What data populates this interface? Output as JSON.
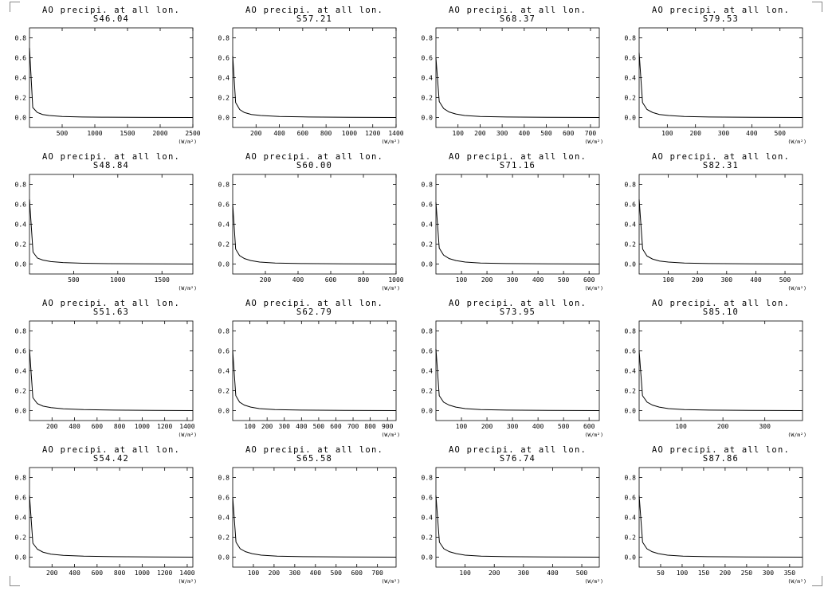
{
  "page": {
    "panel_title": "AO precipi. at all lon.",
    "unit_label": "(W/m²)"
  },
  "chart_data": [
    {
      "type": "line",
      "title": "AO precipi. at all lon.",
      "subtitle": "S46.04",
      "ylim": [
        -0.1,
        0.9
      ],
      "yticks": [
        0.0,
        0.2,
        0.4,
        0.6,
        0.8
      ],
      "xlim": [
        0,
        2500
      ],
      "xticks": [
        500,
        1000,
        1500,
        2000,
        2500
      ],
      "xlabel": "(W/m²)",
      "series": [
        {
          "x": [
            0,
            50,
            120,
            200,
            300,
            500,
            800,
            1200,
            1800,
            2500
          ],
          "y": [
            0.7,
            0.1,
            0.05,
            0.03,
            0.02,
            0.01,
            0.005,
            0.003,
            0.001,
            0.0
          ]
        }
      ]
    },
    {
      "type": "line",
      "title": "AO precipi. at all lon.",
      "subtitle": "S57.21",
      "ylim": [
        -0.1,
        0.9
      ],
      "yticks": [
        0.0,
        0.2,
        0.4,
        0.6,
        0.8
      ],
      "xlim": [
        0,
        1400
      ],
      "xticks": [
        200,
        400,
        600,
        800,
        1000,
        1200,
        1400
      ],
      "xlabel": "(W/m²)",
      "series": [
        {
          "x": [
            0,
            25,
            60,
            100,
            160,
            240,
            400,
            650,
            1000,
            1400
          ],
          "y": [
            0.62,
            0.15,
            0.08,
            0.05,
            0.03,
            0.02,
            0.01,
            0.005,
            0.002,
            0.0
          ]
        }
      ]
    },
    {
      "type": "line",
      "title": "AO precipi. at all lon.",
      "subtitle": "S68.37",
      "ylim": [
        -0.1,
        0.9
      ],
      "yticks": [
        0.0,
        0.2,
        0.4,
        0.6,
        0.8
      ],
      "xlim": [
        0,
        740
      ],
      "xticks": [
        100,
        200,
        300,
        400,
        500,
        600,
        700
      ],
      "xlabel": "(W/m²)",
      "series": [
        {
          "x": [
            0,
            15,
            35,
            60,
            90,
            130,
            200,
            320,
            500,
            740
          ],
          "y": [
            0.6,
            0.16,
            0.09,
            0.055,
            0.035,
            0.02,
            0.01,
            0.005,
            0.002,
            0.0
          ]
        }
      ]
    },
    {
      "type": "line",
      "title": "AO precipi. at all lon.",
      "subtitle": "S79.53",
      "ylim": [
        -0.1,
        0.9
      ],
      "yticks": [
        0.0,
        0.2,
        0.4,
        0.6,
        0.8
      ],
      "xlim": [
        0,
        580
      ],
      "xticks": [
        100,
        200,
        300,
        400,
        500
      ],
      "xlabel": "(W/m²)",
      "series": [
        {
          "x": [
            0,
            12,
            28,
            48,
            72,
            105,
            160,
            250,
            400,
            580
          ],
          "y": [
            0.65,
            0.15,
            0.08,
            0.05,
            0.03,
            0.02,
            0.01,
            0.005,
            0.002,
            0.0
          ]
        }
      ]
    },
    {
      "type": "line",
      "title": "AO precipi. at all lon.",
      "subtitle": "S48.84",
      "ylim": [
        -0.1,
        0.9
      ],
      "yticks": [
        0.0,
        0.2,
        0.4,
        0.6,
        0.8
      ],
      "xlim": [
        0,
        1850
      ],
      "xticks": [
        500,
        1000,
        1500
      ],
      "xlabel": "(W/m²)",
      "series": [
        {
          "x": [
            0,
            40,
            90,
            150,
            240,
            380,
            600,
            900,
            1300,
            1850
          ],
          "y": [
            0.65,
            0.12,
            0.06,
            0.04,
            0.025,
            0.015,
            0.008,
            0.004,
            0.002,
            0.0
          ]
        }
      ]
    },
    {
      "type": "line",
      "title": "AO precipi. at all lon.",
      "subtitle": "S60.00",
      "ylim": [
        -0.1,
        0.9
      ],
      "yticks": [
        0.0,
        0.2,
        0.4,
        0.6,
        0.8
      ],
      "xlim": [
        0,
        1000
      ],
      "xticks": [
        200,
        400,
        600,
        800,
        1000
      ],
      "xlabel": "(W/m²)",
      "series": [
        {
          "x": [
            0,
            18,
            42,
            72,
            110,
            165,
            260,
            420,
            680,
            1000
          ],
          "y": [
            0.6,
            0.15,
            0.085,
            0.055,
            0.035,
            0.02,
            0.01,
            0.005,
            0.002,
            0.0
          ]
        }
      ]
    },
    {
      "type": "line",
      "title": "AO precipi. at all lon.",
      "subtitle": "S71.16",
      "ylim": [
        -0.1,
        0.9
      ],
      "yticks": [
        0.0,
        0.2,
        0.4,
        0.6,
        0.8
      ],
      "xlim": [
        0,
        640
      ],
      "xticks": [
        100,
        200,
        300,
        400,
        500,
        600
      ],
      "xlabel": "(W/m²)",
      "series": [
        {
          "x": [
            0,
            13,
            30,
            52,
            78,
            115,
            175,
            280,
            440,
            640
          ],
          "y": [
            0.62,
            0.16,
            0.09,
            0.055,
            0.035,
            0.02,
            0.01,
            0.005,
            0.002,
            0.0
          ]
        }
      ]
    },
    {
      "type": "line",
      "title": "AO precipi. at all lon.",
      "subtitle": "S82.31",
      "ylim": [
        -0.1,
        0.9
      ],
      "yticks": [
        0.0,
        0.2,
        0.4,
        0.6,
        0.8
      ],
      "xlim": [
        0,
        560
      ],
      "xticks": [
        100,
        200,
        300,
        400,
        500
      ],
      "xlabel": "(W/m²)",
      "series": [
        {
          "x": [
            0,
            12,
            27,
            46,
            70,
            100,
            155,
            245,
            380,
            560
          ],
          "y": [
            0.65,
            0.15,
            0.08,
            0.05,
            0.03,
            0.02,
            0.01,
            0.005,
            0.002,
            0.0
          ]
        }
      ]
    },
    {
      "type": "line",
      "title": "AO precipi. at all lon.",
      "subtitle": "S51.63",
      "ylim": [
        -0.1,
        0.9
      ],
      "yticks": [
        0.0,
        0.2,
        0.4,
        0.6,
        0.8
      ],
      "xlim": [
        0,
        1450
      ],
      "xticks": [
        200,
        400,
        600,
        800,
        1000,
        1200,
        1400
      ],
      "xlabel": "(W/m²)",
      "series": [
        {
          "x": [
            0,
            30,
            70,
            120,
            190,
            300,
            480,
            750,
            1100,
            1450
          ],
          "y": [
            0.62,
            0.13,
            0.07,
            0.045,
            0.03,
            0.018,
            0.01,
            0.005,
            0.002,
            0.0
          ]
        }
      ]
    },
    {
      "type": "line",
      "title": "AO precipi. at all lon.",
      "subtitle": "S62.79",
      "ylim": [
        -0.1,
        0.9
      ],
      "yticks": [
        0.0,
        0.2,
        0.4,
        0.6,
        0.8
      ],
      "xlim": [
        0,
        950
      ],
      "xticks": [
        100,
        200,
        300,
        400,
        500,
        600,
        700,
        800,
        900
      ],
      "xlabel": "(W/m²)",
      "series": [
        {
          "x": [
            0,
            18,
            40,
            68,
            105,
            155,
            245,
            400,
            650,
            950
          ],
          "y": [
            0.6,
            0.15,
            0.085,
            0.055,
            0.035,
            0.02,
            0.01,
            0.005,
            0.002,
            0.0
          ]
        }
      ]
    },
    {
      "type": "line",
      "title": "AO precipi. at all lon.",
      "subtitle": "S73.95",
      "ylim": [
        -0.1,
        0.9
      ],
      "yticks": [
        0.0,
        0.2,
        0.4,
        0.6,
        0.8
      ],
      "xlim": [
        0,
        640
      ],
      "xticks": [
        100,
        200,
        300,
        400,
        500,
        600
      ],
      "xlabel": "(W/m²)",
      "series": [
        {
          "x": [
            0,
            13,
            30,
            52,
            78,
            115,
            175,
            280,
            440,
            640
          ],
          "y": [
            0.62,
            0.15,
            0.085,
            0.055,
            0.035,
            0.02,
            0.01,
            0.005,
            0.002,
            0.0
          ]
        }
      ]
    },
    {
      "type": "line",
      "title": "AO precipi. at all lon.",
      "subtitle": "S85.10",
      "ylim": [
        -0.1,
        0.9
      ],
      "yticks": [
        0.0,
        0.2,
        0.4,
        0.6,
        0.8
      ],
      "xlim": [
        0,
        390
      ],
      "xticks": [
        100,
        200,
        300
      ],
      "xlabel": "(W/m²)",
      "series": [
        {
          "x": [
            0,
            8,
            19,
            32,
            48,
            70,
            108,
            170,
            265,
            390
          ],
          "y": [
            0.6,
            0.15,
            0.085,
            0.055,
            0.035,
            0.02,
            0.01,
            0.005,
            0.002,
            0.0
          ]
        }
      ]
    },
    {
      "type": "line",
      "title": "AO precipi. at all lon.",
      "subtitle": "S54.42",
      "ylim": [
        -0.1,
        0.9
      ],
      "yticks": [
        0.0,
        0.2,
        0.4,
        0.6,
        0.8
      ],
      "xlim": [
        0,
        1450
      ],
      "xticks": [
        200,
        400,
        600,
        800,
        1000,
        1200,
        1400
      ],
      "xlabel": "(W/m²)",
      "series": [
        {
          "x": [
            0,
            30,
            70,
            120,
            190,
            300,
            480,
            750,
            1100,
            1450
          ],
          "y": [
            0.62,
            0.14,
            0.08,
            0.05,
            0.03,
            0.018,
            0.01,
            0.005,
            0.002,
            0.0
          ]
        }
      ]
    },
    {
      "type": "line",
      "title": "AO precipi. at all lon.",
      "subtitle": "S65.58",
      "ylim": [
        -0.1,
        0.9
      ],
      "yticks": [
        0.0,
        0.2,
        0.4,
        0.6,
        0.8
      ],
      "xlim": [
        0,
        790
      ],
      "xticks": [
        100,
        200,
        300,
        400,
        500,
        600,
        700
      ],
      "xlabel": "(W/m²)",
      "series": [
        {
          "x": [
            0,
            16,
            36,
            62,
            94,
            138,
            215,
            340,
            540,
            790
          ],
          "y": [
            0.6,
            0.15,
            0.085,
            0.055,
            0.035,
            0.02,
            0.01,
            0.005,
            0.002,
            0.0
          ]
        }
      ]
    },
    {
      "type": "line",
      "title": "AO precipi. at all lon.",
      "subtitle": "S76.74",
      "ylim": [
        -0.1,
        0.9
      ],
      "yticks": [
        0.0,
        0.2,
        0.4,
        0.6,
        0.8
      ],
      "xlim": [
        0,
        560
      ],
      "xticks": [
        100,
        200,
        300,
        400,
        500
      ],
      "xlabel": "(W/m²)",
      "series": [
        {
          "x": [
            0,
            12,
            27,
            46,
            70,
            100,
            155,
            245,
            380,
            560
          ],
          "y": [
            0.62,
            0.15,
            0.085,
            0.055,
            0.035,
            0.02,
            0.01,
            0.005,
            0.002,
            0.0
          ]
        }
      ]
    },
    {
      "type": "line",
      "title": "AO precipi. at all lon.",
      "subtitle": "S87.86",
      "ylim": [
        -0.1,
        0.9
      ],
      "yticks": [
        0.0,
        0.2,
        0.4,
        0.6,
        0.8
      ],
      "xlim": [
        0,
        380
      ],
      "xticks": [
        50,
        100,
        150,
        200,
        250,
        300,
        350
      ],
      "xlabel": "(W/m²)",
      "series": [
        {
          "x": [
            0,
            8,
            18,
            30,
            45,
            66,
            102,
            160,
            250,
            380
          ],
          "y": [
            0.62,
            0.15,
            0.085,
            0.055,
            0.035,
            0.02,
            0.01,
            0.005,
            0.002,
            0.0
          ]
        }
      ]
    }
  ]
}
